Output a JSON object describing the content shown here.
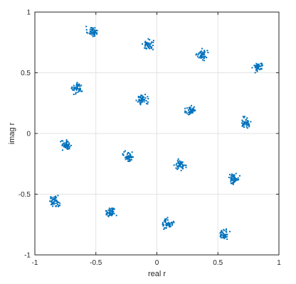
{
  "chart_data": {
    "type": "scatter",
    "title": "",
    "xlabel": "real r",
    "ylabel": "imag r",
    "xlim": [
      -1,
      1
    ],
    "ylim": [
      -1,
      1
    ],
    "x_ticks": [
      -1,
      -0.5,
      0,
      0.5,
      1
    ],
    "y_ticks": [
      -1,
      -0.5,
      0,
      0.5,
      1
    ],
    "x_tick_labels": [
      "-1",
      "-0.5",
      "0",
      "0.5",
      "1"
    ],
    "y_tick_labels": [
      "-1",
      "-0.5",
      "0",
      "0.5",
      "1"
    ],
    "grid": true,
    "legend": "none",
    "marker_color": "#0072BD",
    "series": [
      {
        "cluster_centers": [
          [
            -0.53,
            0.84
          ],
          [
            -0.07,
            0.73
          ],
          [
            0.37,
            0.65
          ],
          [
            0.83,
            0.55
          ],
          [
            -0.65,
            0.37
          ],
          [
            -0.12,
            0.28
          ],
          [
            0.28,
            0.19
          ],
          [
            0.73,
            0.09
          ],
          [
            -0.74,
            -0.1
          ],
          [
            -0.23,
            -0.19
          ],
          [
            0.19,
            -0.26
          ],
          [
            0.63,
            -0.37
          ],
          [
            -0.84,
            -0.56
          ],
          [
            -0.38,
            -0.65
          ],
          [
            0.09,
            -0.74
          ],
          [
            0.55,
            -0.83
          ]
        ],
        "cluster_spread": 0.035,
        "points_per_cluster": 50
      }
    ]
  }
}
